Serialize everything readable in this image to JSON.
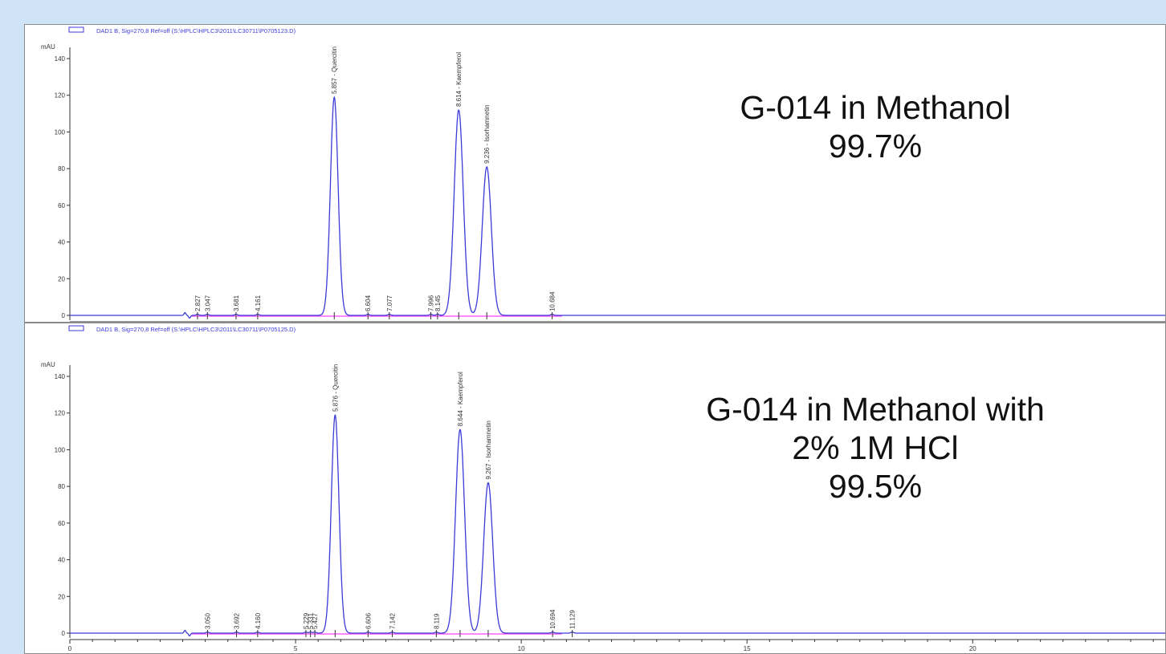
{
  "colors": {
    "background": "#cfe5f7",
    "signal": "#3b3bd8",
    "baseline": "#ff40ff",
    "axis": "#333333",
    "text": "#111111"
  },
  "labels": [
    {
      "lines": [
        "G-014 in Methanol",
        "99.7%"
      ]
    },
    {
      "lines": [
        "G-014 in Methanol with",
        "2% 1M HCl",
        "99.5%"
      ]
    }
  ],
  "chart_data": [
    {
      "type": "line",
      "title": "DAD1 B, Sig=270,8 Ref=off (S:\\HPLC\\HPLC3\\2011\\LC30711\\P0705123.D)",
      "ylabel": "mAU",
      "xlim": [
        0,
        24.3
      ],
      "ylim": [
        -3,
        143
      ],
      "yticks": [
        0,
        20,
        40,
        60,
        80,
        100,
        120,
        140
      ],
      "xticks": [
        0,
        5,
        10,
        15,
        20
      ],
      "peaks": [
        {
          "rt": 5.857,
          "height": 119,
          "width": 0.085,
          "label": "5.857 - Quercitin"
        },
        {
          "rt": 8.614,
          "height": 112,
          "width": 0.1,
          "label": "8.614 - Kaempferol"
        },
        {
          "rt": 9.236,
          "height": 81,
          "width": 0.1,
          "label": "9.236 - Isorhamnetin"
        }
      ],
      "minor_peaks": [
        {
          "rt": 2.827,
          "label": "2.827"
        },
        {
          "rt": 3.047,
          "label": "3.047"
        },
        {
          "rt": 3.681,
          "label": "3.681"
        },
        {
          "rt": 4.161,
          "label": "4.161"
        },
        {
          "rt": 6.604,
          "label": "6.604"
        },
        {
          "rt": 7.077,
          "label": "7.077"
        },
        {
          "rt": 7.996,
          "label": "7.996"
        },
        {
          "rt": 8.145,
          "label": "8.145"
        },
        {
          "rt": 10.684,
          "label": "10.684"
        }
      ]
    },
    {
      "type": "line",
      "title": "DAD1 B, Sig=270,8 Ref=off (S:\\HPLC\\HPLC3\\2011\\LC30711\\P0705125.D)",
      "ylabel": "mAU",
      "xlim": [
        0,
        24.3
      ],
      "ylim": [
        -3,
        143
      ],
      "yticks": [
        0,
        20,
        40,
        60,
        80,
        100,
        120,
        140
      ],
      "xticks": [
        0,
        5,
        10,
        15,
        20
      ],
      "peaks": [
        {
          "rt": 5.876,
          "height": 119,
          "width": 0.085,
          "label": "5.876 - Quercitin"
        },
        {
          "rt": 8.644,
          "height": 111,
          "width": 0.1,
          "label": "8.644 - Kaempferol"
        },
        {
          "rt": 9.267,
          "height": 82,
          "width": 0.1,
          "label": "9.267 - Isorhamnetin"
        }
      ],
      "minor_peaks": [
        {
          "rt": 3.05,
          "label": "3.050"
        },
        {
          "rt": 3.692,
          "label": "3.692"
        },
        {
          "rt": 4.16,
          "label": "4.160"
        },
        {
          "rt": 5.229,
          "label": "5.229"
        },
        {
          "rt": 5.331,
          "label": "5.331"
        },
        {
          "rt": 5.427,
          "label": "5.427"
        },
        {
          "rt": 6.606,
          "label": "6.606"
        },
        {
          "rt": 7.142,
          "label": "7.142"
        },
        {
          "rt": 8.119,
          "label": "8.119"
        },
        {
          "rt": 10.694,
          "label": "10.694"
        },
        {
          "rt": 11.129,
          "label": "11.129"
        }
      ]
    }
  ]
}
